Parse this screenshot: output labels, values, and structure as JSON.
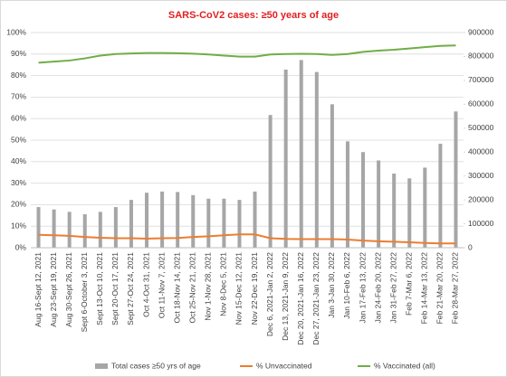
{
  "chart_data": {
    "type": "bar-line",
    "title": "SARS-CoV2 cases: ≥50 years of age",
    "categories": [
      "Aug 16-Sept 12, 2021",
      "Aug 23-Sept 19, 2021",
      "Aug 30-Sept 26, 2021",
      "Sept 6-October 3, 2021",
      "Sept 13-Oct 10, 2021",
      "Sept 20-Oct 17, 2021",
      "Sept 27-Oct 24, 2021",
      "Oct 4-Oct 31, 2021",
      "Oct 11-Nov 7, 2021",
      "Oct 18-Nov 14, 2021",
      "Oct 25-Nov 21, 2021",
      "Nov 1-Nov 28, 2021",
      "Nov 8-Dec 5, 2021",
      "Nov 15-Dec 12, 2021",
      "Nov 22-Dec 19, 2021",
      "Dec 6, 2021-Jan 2, 2022",
      "Dec 13, 2021-Jan 9, 2022",
      "Dec 20, 2021-Jan 16, 2022",
      "Dec 27, 2021-Jan 23, 2022",
      "Jan 3-Jan 30, 2022",
      "Jan 10-Feb 6, 2022",
      "Jan 17-Feb 13, 2022",
      "Jan 24-Feb 20, 2022",
      "Jan 31-Feb 27, 2022",
      "Feb 7-Mar 6, 2022",
      "Feb 14-Mar 13, 2022",
      "Feb 21-Mar 20, 2022",
      "Feb 28-Mar 27, 2022"
    ],
    "series": [
      {
        "name": "Total cases ≥50 yrs of age",
        "kind": "bar",
        "axis": "y2",
        "color": "#a6a6a6",
        "values": [
          170000,
          160000,
          150000,
          140000,
          150000,
          170000,
          200000,
          230000,
          235000,
          233000,
          220000,
          205000,
          205000,
          200000,
          235000,
          555000,
          745000,
          785000,
          735000,
          600000,
          445000,
          400000,
          365000,
          310000,
          290000,
          335000,
          435000,
          570000
        ]
      },
      {
        "name": "% Unvaccinated",
        "kind": "line",
        "color": "#ed7d31",
        "values": [
          6,
          5.8,
          5.5,
          5,
          4.6,
          4.4,
          4.4,
          4.2,
          4.4,
          4.5,
          5,
          5.3,
          5.8,
          6.2,
          6.2,
          4.4,
          4.1,
          4,
          4,
          4,
          3.8,
          3.3,
          3,
          2.8,
          2.5,
          2.2,
          2,
          2
        ]
      },
      {
        "name": "% Vaccinated (all)",
        "kind": "line",
        "color": "#70ad47",
        "values": [
          86,
          86.5,
          87,
          88,
          89.3,
          90,
          90.3,
          90.5,
          90.5,
          90.4,
          90.2,
          89.8,
          89.3,
          88.8,
          88.8,
          89.8,
          90,
          90.1,
          90,
          89.6,
          90,
          91,
          91.6,
          92,
          92.6,
          93.2,
          93.8,
          94
        ]
      }
    ],
    "ylim": [
      0,
      100
    ],
    "yticks": [
      {
        "value": 0,
        "label": "0%"
      },
      {
        "value": 10,
        "label": "10%"
      },
      {
        "value": 20,
        "label": "20%"
      },
      {
        "value": 30,
        "label": "30%"
      },
      {
        "value": 40,
        "label": "40%"
      },
      {
        "value": 50,
        "label": "50%"
      },
      {
        "value": 60,
        "label": "60%"
      },
      {
        "value": 70,
        "label": "70%"
      },
      {
        "value": 80,
        "label": "80%"
      },
      {
        "value": 90,
        "label": "90%"
      },
      {
        "value": 100,
        "label": "100%"
      }
    ],
    "y2lim": [
      0,
      900000
    ],
    "y2ticks": [
      0,
      100000,
      200000,
      300000,
      400000,
      500000,
      600000,
      700000,
      800000,
      900000
    ],
    "grid": true
  }
}
